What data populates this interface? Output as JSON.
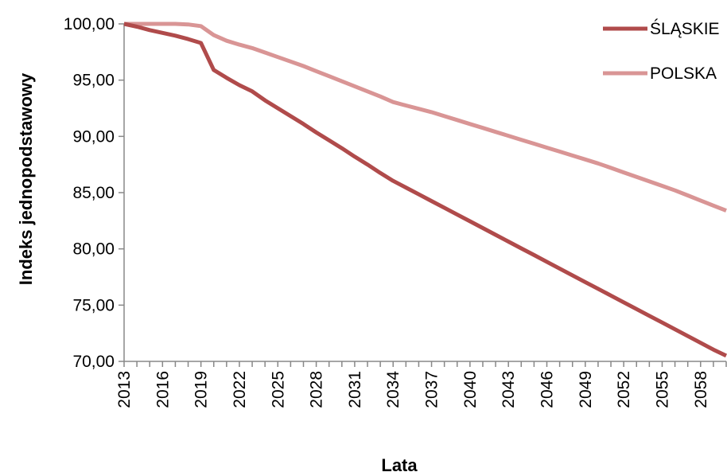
{
  "chart_data": {
    "type": "line",
    "xlabel": "Lata",
    "ylabel": "Indeks jednopodstawowy",
    "xlim": [
      2013,
      2060
    ],
    "ylim": [
      70,
      100
    ],
    "y_ticks": [
      100,
      95,
      90,
      85,
      80,
      75,
      70
    ],
    "y_tick_labels": [
      "100,00",
      "95,00",
      "90,00",
      "85,00",
      "80,00",
      "75,00",
      "70,00"
    ],
    "x_tick_labels": [
      "2013",
      "2016",
      "2019",
      "2022",
      "2025",
      "2028",
      "2031",
      "2034",
      "2037",
      "2040",
      "2043",
      "2046",
      "2049",
      "2052",
      "2055",
      "2058"
    ],
    "grid": false,
    "legend_position": "top-right",
    "x": [
      2013,
      2014,
      2015,
      2016,
      2017,
      2018,
      2019,
      2020,
      2021,
      2022,
      2023,
      2024,
      2025,
      2026,
      2027,
      2028,
      2029,
      2030,
      2031,
      2032,
      2033,
      2034,
      2035,
      2036,
      2037,
      2038,
      2039,
      2040,
      2041,
      2042,
      2043,
      2044,
      2045,
      2046,
      2047,
      2048,
      2049,
      2050,
      2051,
      2052,
      2053,
      2054,
      2055,
      2056,
      2057,
      2058,
      2059,
      2060
    ],
    "series": [
      {
        "name": "ŚLĄSKIE",
        "color": "#b04b4b",
        "values": [
          100,
          99.75,
          99.45,
          99.2,
          98.95,
          98.65,
          98.3,
          95.9,
          95.2,
          94.55,
          94.0,
          93.2,
          92.5,
          91.8,
          91.1,
          90.35,
          89.65,
          88.95,
          88.2,
          87.5,
          86.75,
          86.05,
          85.45,
          84.85,
          84.25,
          83.65,
          83.05,
          82.45,
          81.85,
          81.25,
          80.65,
          80.05,
          79.45,
          78.85,
          78.25,
          77.65,
          77.05,
          76.45,
          75.85,
          75.25,
          74.65,
          74.05,
          73.45,
          72.85,
          72.25,
          71.65,
          71.05,
          70.5
        ]
      },
      {
        "name": "POLSKA",
        "color": "#d99595",
        "values": [
          100,
          100,
          100,
          100,
          100,
          99.95,
          99.8,
          99.0,
          98.5,
          98.15,
          97.85,
          97.45,
          97.05,
          96.65,
          96.25,
          95.8,
          95.35,
          94.9,
          94.45,
          94.0,
          93.55,
          93.05,
          92.75,
          92.45,
          92.15,
          91.8,
          91.45,
          91.1,
          90.75,
          90.4,
          90.05,
          89.7,
          89.35,
          89.0,
          88.65,
          88.3,
          87.95,
          87.6,
          87.2,
          86.8,
          86.4,
          86.0,
          85.6,
          85.2,
          84.75,
          84.3,
          83.85,
          83.4
        ]
      }
    ]
  }
}
